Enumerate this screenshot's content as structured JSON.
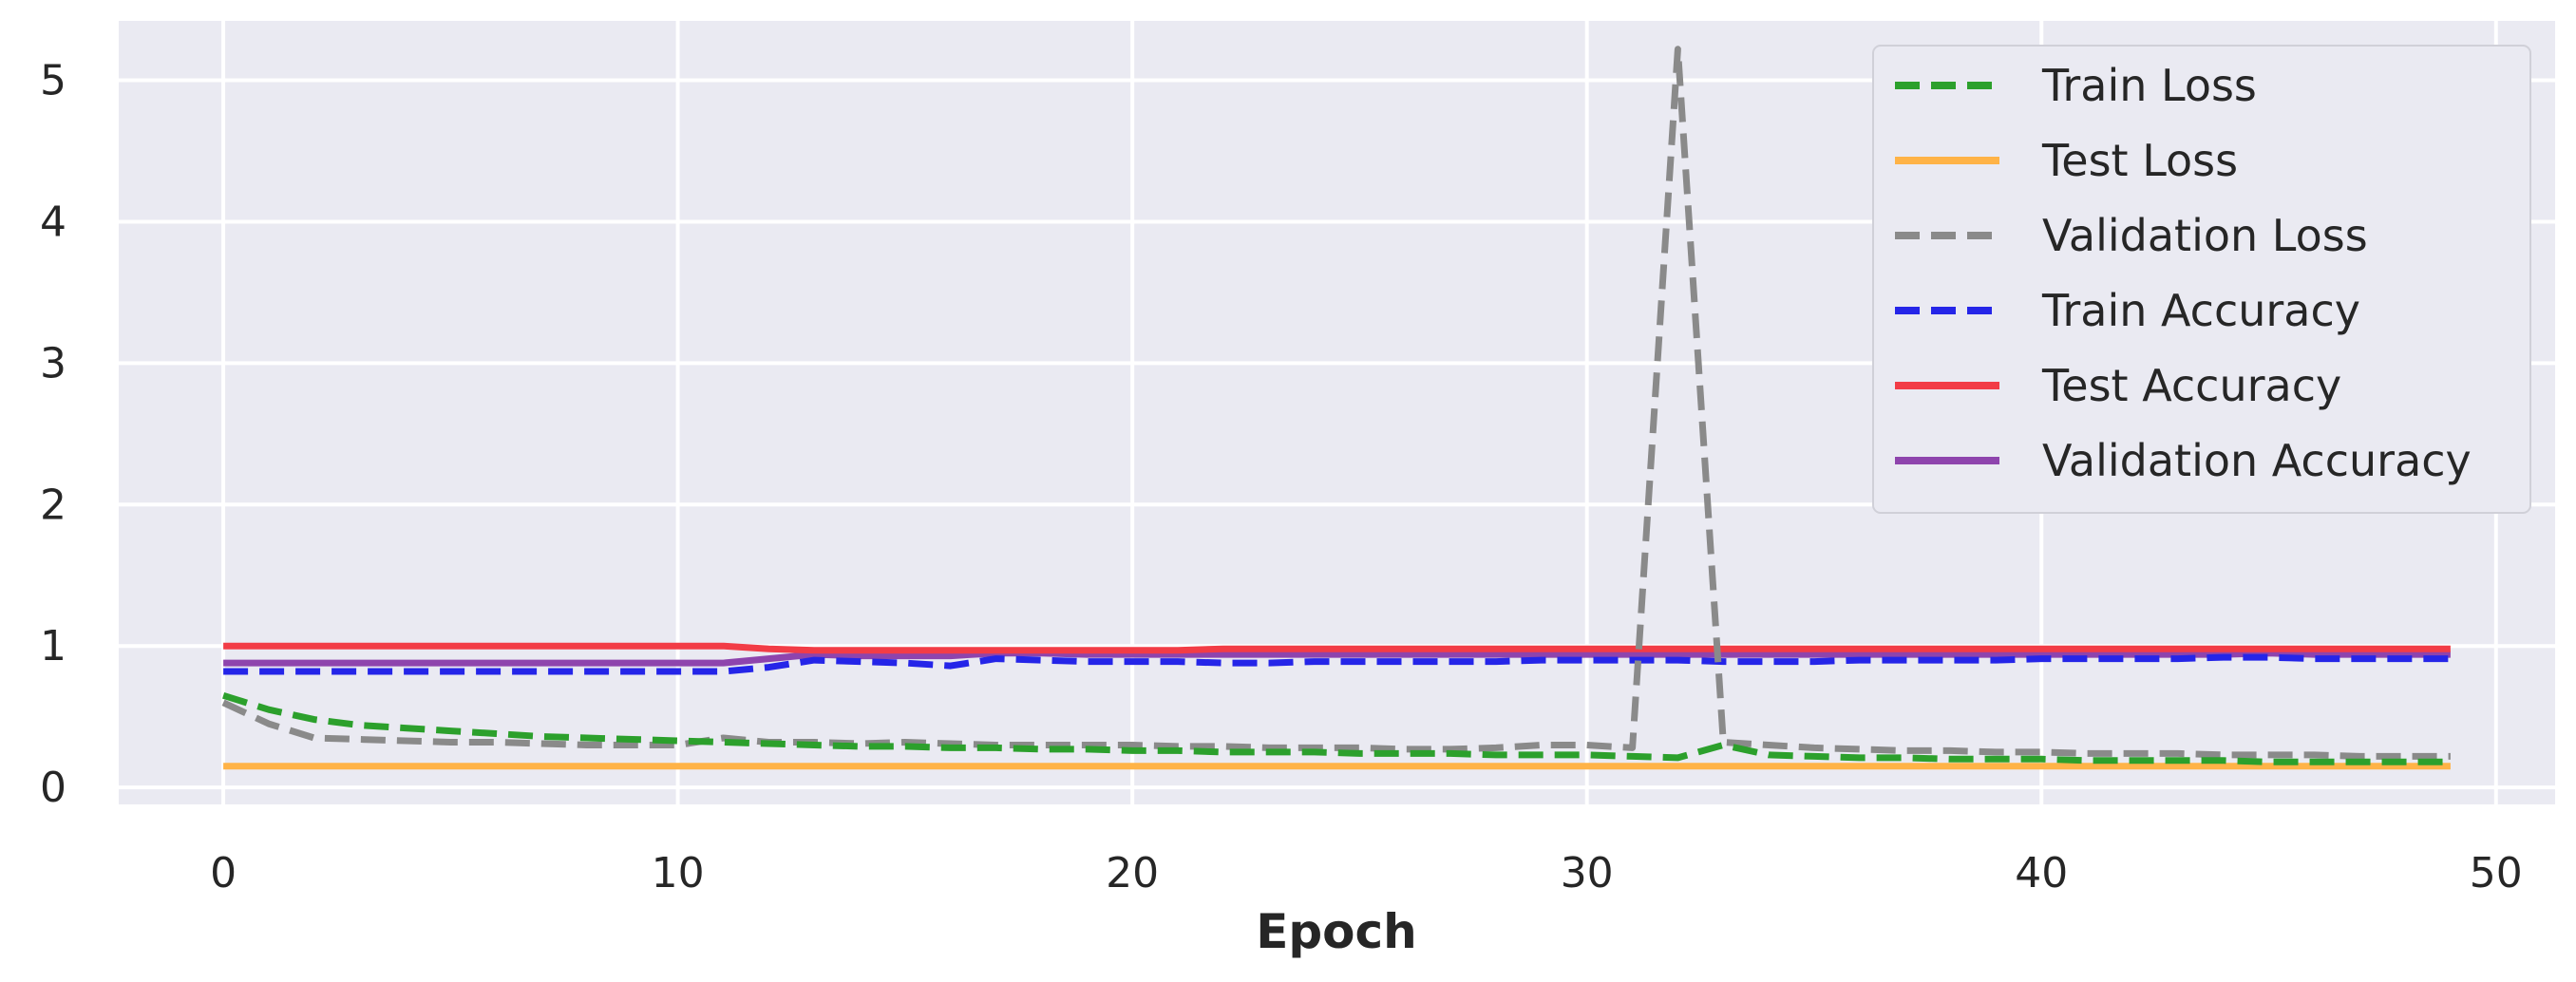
{
  "chart_data": {
    "type": "line",
    "title": "",
    "xlabel": "Epoch",
    "ylabel": "",
    "xlim": [
      -2.3,
      51.3
    ],
    "ylim": [
      -0.12,
      5.42
    ],
    "xticks": [
      0,
      10,
      20,
      30,
      40,
      50
    ],
    "yticks": [
      0,
      1,
      2,
      3,
      4,
      5
    ],
    "grid": true,
    "legend_position": "top-right",
    "colors": {
      "plot_background": "#eaeaf2",
      "grid": "#ffffff"
    },
    "x": [
      0,
      1,
      2,
      3,
      4,
      5,
      6,
      7,
      8,
      9,
      10,
      11,
      12,
      13,
      14,
      15,
      16,
      17,
      18,
      19,
      20,
      21,
      22,
      23,
      24,
      25,
      26,
      27,
      28,
      29,
      30,
      31,
      32,
      33,
      34,
      35,
      36,
      37,
      38,
      39,
      40,
      41,
      42,
      43,
      44,
      45,
      46,
      47,
      48,
      49
    ],
    "series": [
      {
        "name": "Test Loss",
        "color": "#ffb347",
        "dash": "solid",
        "values": [
          0.15,
          0.15,
          0.15,
          0.15,
          0.15,
          0.15,
          0.15,
          0.15,
          0.15,
          0.15,
          0.15,
          0.15,
          0.15,
          0.15,
          0.15,
          0.15,
          0.15,
          0.15,
          0.15,
          0.15,
          0.15,
          0.15,
          0.15,
          0.15,
          0.15,
          0.15,
          0.15,
          0.15,
          0.15,
          0.15,
          0.15,
          0.15,
          0.15,
          0.15,
          0.15,
          0.15,
          0.15,
          0.15,
          0.15,
          0.15,
          0.15,
          0.15,
          0.15,
          0.15,
          0.15,
          0.15,
          0.15,
          0.15,
          0.15,
          0.15
        ]
      },
      {
        "name": "Validation Accuracy",
        "color": "#8e44ad",
        "dash": "solid",
        "values": [
          0.88,
          0.88,
          0.88,
          0.88,
          0.88,
          0.88,
          0.88,
          0.88,
          0.88,
          0.88,
          0.88,
          0.88,
          0.91,
          0.94,
          0.93,
          0.93,
          0.93,
          0.95,
          0.95,
          0.94,
          0.94,
          0.94,
          0.94,
          0.94,
          0.94,
          0.94,
          0.94,
          0.94,
          0.94,
          0.94,
          0.94,
          0.94,
          0.94,
          0.94,
          0.94,
          0.94,
          0.94,
          0.94,
          0.94,
          0.94,
          0.94,
          0.94,
          0.94,
          0.94,
          0.94,
          0.95,
          0.94,
          0.94,
          0.94,
          0.94
        ]
      },
      {
        "name": "Test Accuracy",
        "color": "#f23c46",
        "dash": "solid",
        "values": [
          1.0,
          1.0,
          1.0,
          1.0,
          1.0,
          1.0,
          1.0,
          1.0,
          1.0,
          1.0,
          1.0,
          1.0,
          0.98,
          0.97,
          0.97,
          0.97,
          0.97,
          0.97,
          0.97,
          0.97,
          0.97,
          0.97,
          0.98,
          0.98,
          0.98,
          0.98,
          0.98,
          0.98,
          0.98,
          0.98,
          0.98,
          0.98,
          0.98,
          0.98,
          0.98,
          0.98,
          0.98,
          0.98,
          0.98,
          0.98,
          0.98,
          0.98,
          0.98,
          0.98,
          0.98,
          0.98,
          0.98,
          0.98,
          0.98,
          0.98
        ]
      },
      {
        "name": "Train Accuracy",
        "color": "#2525e8",
        "dash": "dashed",
        "values": [
          0.82,
          0.82,
          0.82,
          0.82,
          0.82,
          0.82,
          0.82,
          0.82,
          0.82,
          0.82,
          0.82,
          0.82,
          0.85,
          0.9,
          0.89,
          0.88,
          0.86,
          0.91,
          0.9,
          0.89,
          0.89,
          0.89,
          0.88,
          0.88,
          0.89,
          0.89,
          0.89,
          0.89,
          0.89,
          0.9,
          0.9,
          0.9,
          0.9,
          0.89,
          0.89,
          0.89,
          0.9,
          0.9,
          0.9,
          0.9,
          0.91,
          0.91,
          0.91,
          0.91,
          0.92,
          0.92,
          0.91,
          0.91,
          0.91,
          0.91
        ]
      },
      {
        "name": "Validation Loss",
        "color": "#8a8a8a",
        "dash": "dashed",
        "values": [
          0.6,
          0.45,
          0.35,
          0.34,
          0.33,
          0.32,
          0.32,
          0.31,
          0.3,
          0.3,
          0.3,
          0.35,
          0.32,
          0.32,
          0.31,
          0.32,
          0.31,
          0.3,
          0.3,
          0.3,
          0.3,
          0.29,
          0.29,
          0.28,
          0.28,
          0.28,
          0.27,
          0.27,
          0.28,
          0.3,
          0.3,
          0.28,
          5.22,
          0.32,
          0.3,
          0.28,
          0.27,
          0.26,
          0.26,
          0.25,
          0.25,
          0.24,
          0.24,
          0.24,
          0.23,
          0.23,
          0.23,
          0.22,
          0.22,
          0.22
        ]
      },
      {
        "name": "Train Loss",
        "color": "#2ca02c",
        "dash": "dashed",
        "values": [
          0.65,
          0.55,
          0.48,
          0.44,
          0.42,
          0.4,
          0.38,
          0.36,
          0.35,
          0.34,
          0.33,
          0.32,
          0.31,
          0.3,
          0.29,
          0.29,
          0.28,
          0.28,
          0.27,
          0.27,
          0.26,
          0.26,
          0.25,
          0.25,
          0.25,
          0.24,
          0.24,
          0.24,
          0.23,
          0.23,
          0.23,
          0.22,
          0.21,
          0.3,
          0.23,
          0.22,
          0.21,
          0.21,
          0.2,
          0.2,
          0.2,
          0.19,
          0.19,
          0.19,
          0.19,
          0.18,
          0.18,
          0.18,
          0.18,
          0.18
        ]
      }
    ],
    "legend": [
      {
        "name": "Train Loss",
        "color": "#2ca02c",
        "dash": "dashed"
      },
      {
        "name": "Test Loss",
        "color": "#ffb347",
        "dash": "solid"
      },
      {
        "name": "Validation Loss",
        "color": "#8a8a8a",
        "dash": "dashed"
      },
      {
        "name": "Train Accuracy",
        "color": "#2525e8",
        "dash": "dashed"
      },
      {
        "name": "Test Accuracy",
        "color": "#f23c46",
        "dash": "solid"
      },
      {
        "name": "Validation Accuracy",
        "color": "#8e44ad",
        "dash": "solid"
      }
    ]
  }
}
